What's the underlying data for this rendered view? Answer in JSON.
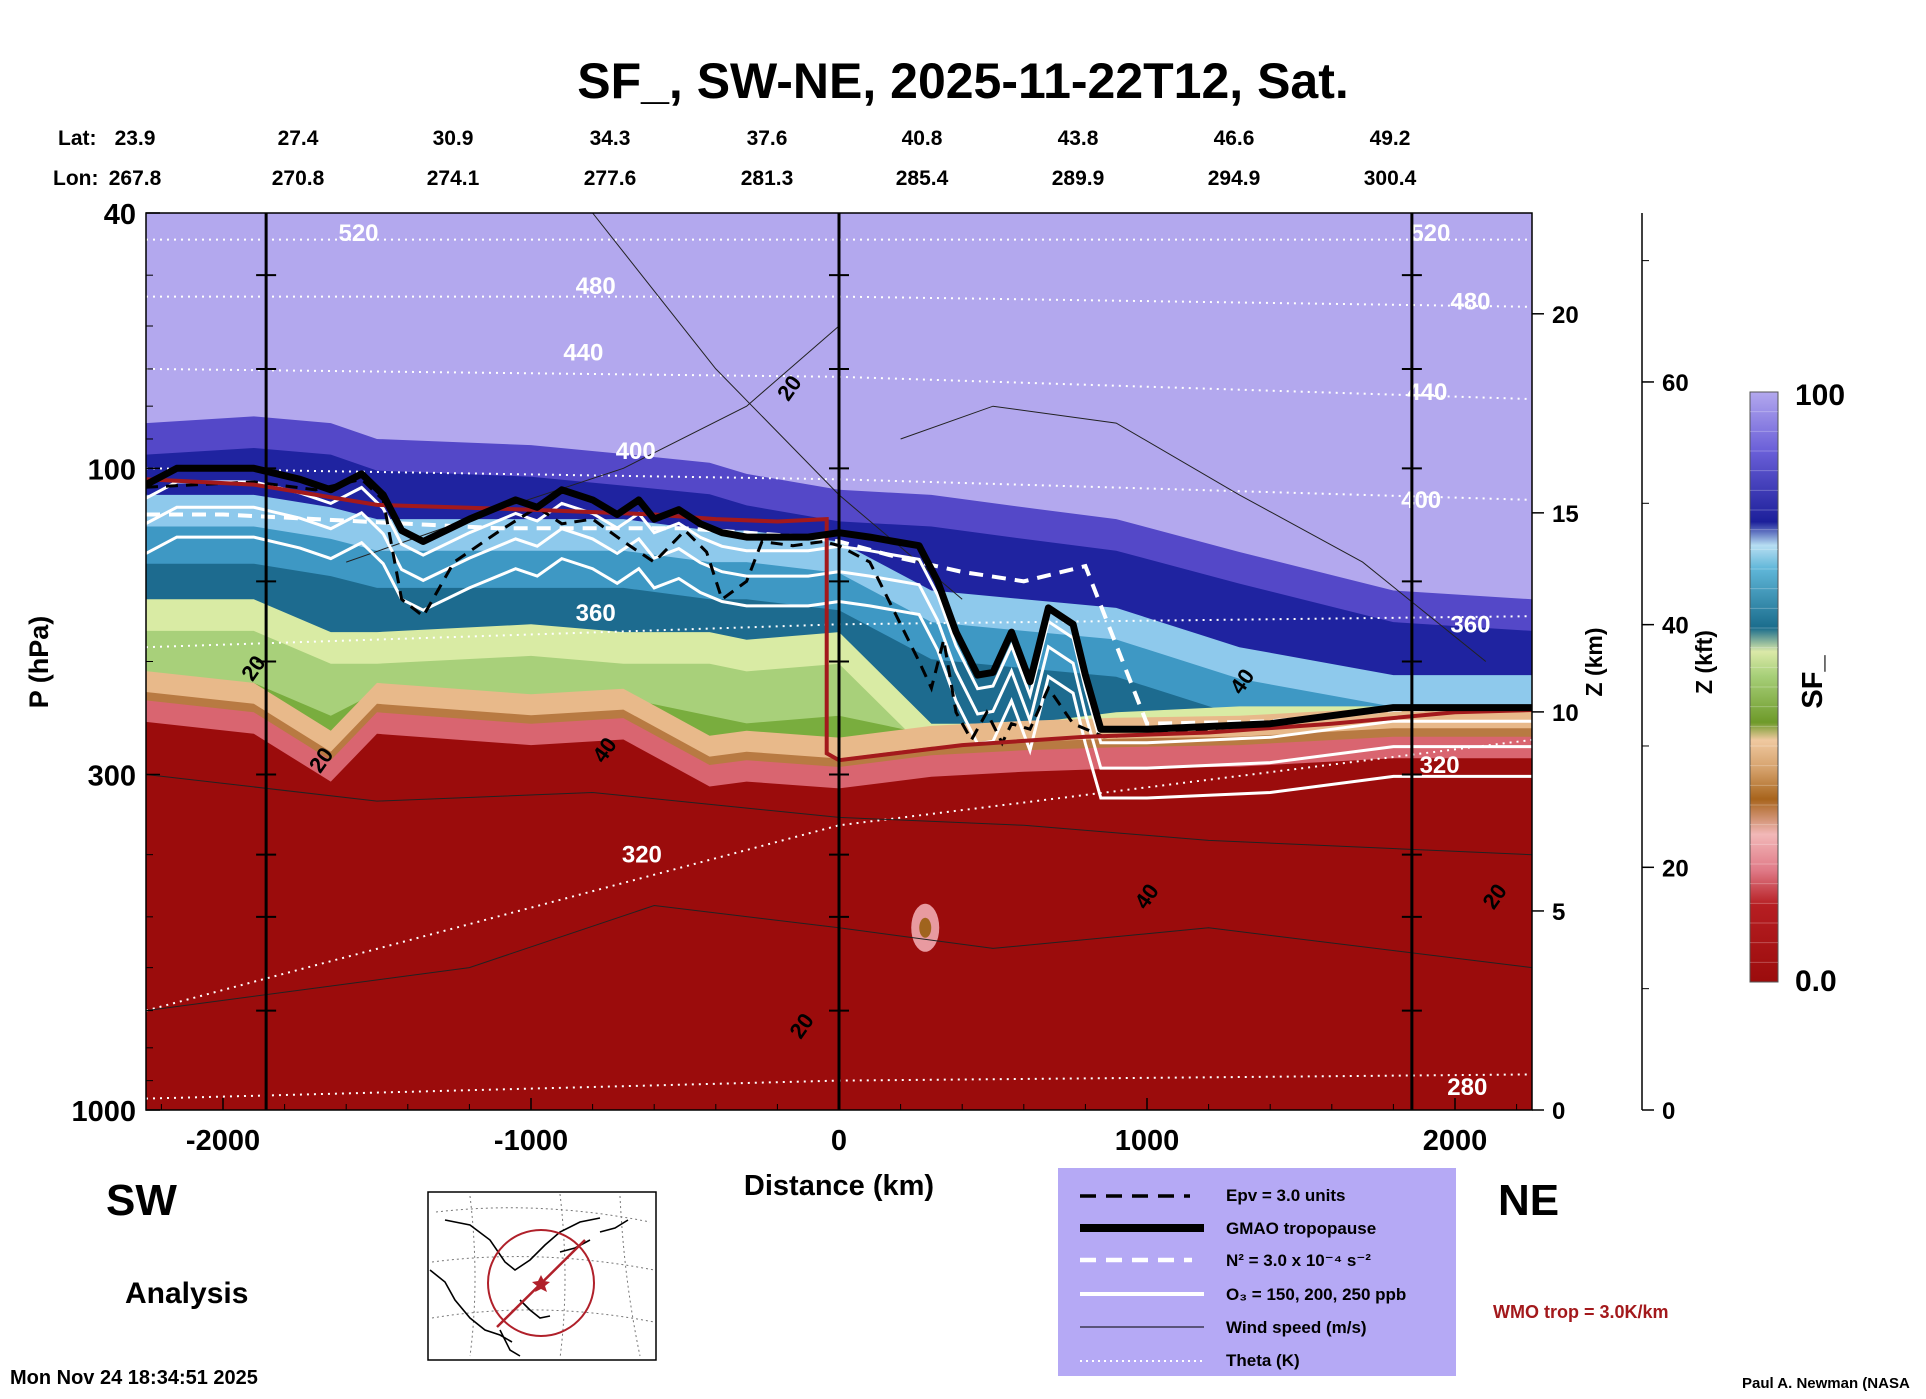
{
  "page": {
    "title": "SF_, SW-NE, 2025-11-22T12, Sat.",
    "left_label": "SW",
    "right_label": "NE",
    "analysis_label": "Analysis",
    "timestamp": "Mon Nov 24 18:34:51 2025",
    "credit": "Paul A. Newman (NASA",
    "wmo_note": "WMO trop = 3.0K/km",
    "lat_label": "Lat:",
    "lon_label": "Lon:"
  },
  "colors": {
    "low": "#9b0c0c",
    "mid": "#84b84a",
    "high": "#1c1f9a",
    "top": "#b3a8ee",
    "legend_bg": "#b5a9f5",
    "wmo": "#a3191c"
  },
  "chart_data": {
    "type": "heatmap",
    "title": "SF_, SW-NE, 2025-11-22T12, Sat.",
    "xlabel": "Distance (km)",
    "ylabel": "P (hPa)",
    "y2label": "Z (km)",
    "y3label": "Z (kft)",
    "colorbar_label": "SF_",
    "xlim": [
      -2250,
      2250
    ],
    "ylim": [
      1000,
      40
    ],
    "x_ticks": [
      -2000,
      -1000,
      0,
      1000,
      2000
    ],
    "x_tick_labels": [
      "-2000",
      "-1000",
      "0",
      "1000",
      "2000"
    ],
    "p_ticks": [
      40,
      100,
      300,
      1000
    ],
    "p_tick_labels": [
      "40",
      "100",
      "300",
      "1000"
    ],
    "z_km_ticks": [
      0,
      5,
      10,
      15,
      20
    ],
    "z_km_tick_labels": [
      "0",
      "5",
      "10",
      "15",
      "20"
    ],
    "z_kft_ticks": [
      0,
      20,
      40,
      60
    ],
    "z_kft_tick_labels": [
      "0",
      "20",
      "40",
      "60"
    ],
    "latitudes": [
      "23.9",
      "27.4",
      "30.9",
      "34.3",
      "37.6",
      "40.8",
      "43.8",
      "46.6",
      "49.2"
    ],
    "longitudes": [
      "267.8",
      "270.8",
      "274.1",
      "277.6",
      "281.3",
      "285.4",
      "289.9",
      "294.9",
      "300.4"
    ],
    "colorbar": {
      "min_label": "0.0",
      "max_label": "100",
      "min": 0,
      "max": 100
    },
    "vertical_markers_km": [
      -1860,
      0,
      1860
    ],
    "field_boundaries_hpa": {
      "x": [
        -2250,
        -1900,
        -1650,
        -1500,
        -1000,
        -700,
        -420,
        -300,
        0,
        300,
        600,
        900,
        1300,
        1800,
        2250
      ],
      "top_of_red": [
        230,
        240,
        285,
        240,
        250,
        245,
        290,
        285,
        292,
        280,
        275,
        272,
        270,
        262,
        262
      ],
      "top_of_green": [
        160,
        160,
        180,
        180,
        175,
        180,
        180,
        185,
        180,
        250,
        250,
        240,
        235,
        235,
        235
      ],
      "top_of_blue": [
        110,
        110,
        115,
        120,
        120,
        120,
        125,
        125,
        130,
        155,
        160,
        165,
        190,
        210,
        210
      ],
      "top_of_darkblue": [
        85,
        83,
        85,
        90,
        92,
        95,
        98,
        102,
        108,
        110,
        115,
        120,
        135,
        155,
        160
      ]
    },
    "gmao_tropopause": {
      "x": [
        -2250,
        -2150,
        -1900,
        -1750,
        -1650,
        -1550,
        -1480,
        -1420,
        -1350,
        -1200,
        -1050,
        -980,
        -900,
        -800,
        -720,
        -650,
        -600,
        -520,
        -450,
        -380,
        -300,
        -200,
        -100,
        0,
        100,
        180,
        260,
        320,
        380,
        450,
        500,
        560,
        620,
        680,
        760,
        800,
        850,
        1000,
        1400,
        1800,
        2250
      ],
      "p": [
        106,
        100,
        100,
        104,
        108,
        102,
        110,
        125,
        130,
        120,
        112,
        115,
        108,
        112,
        118,
        112,
        120,
        116,
        122,
        126,
        128,
        128,
        128,
        126,
        128,
        130,
        132,
        150,
        180,
        210,
        208,
        180,
        215,
        165,
        175,
        210,
        255,
        255,
        250,
        236,
        236
      ]
    },
    "wmo_tropopause": {
      "x": [
        -2250,
        -1900,
        -1500,
        -1000,
        -600,
        -400,
        -200,
        -40,
        -40,
        0,
        400,
        800,
        1200,
        1600,
        2000,
        2250
      ],
      "p": [
        104,
        106,
        114,
        116,
        118,
        120,
        121,
        120,
        278,
        285,
        270,
        262,
        258,
        250,
        240,
        238
      ]
    },
    "epv_3": {
      "x": [
        -2250,
        -1900,
        -1700,
        -1550,
        -1480,
        -1420,
        -1350,
        -1250,
        -1100,
        -980,
        -900,
        -800,
        -700,
        -600,
        -500,
        -430,
        -380,
        -300,
        -250,
        -150,
        -50,
        0,
        100,
        200,
        260,
        300,
        340,
        380,
        430,
        480,
        530,
        560,
        620,
        680,
        760,
        860,
        1000,
        1400,
        1800,
        2250
      ],
      "p": [
        107,
        105,
        108,
        104,
        112,
        160,
        170,
        140,
        125,
        115,
        122,
        120,
        130,
        140,
        125,
        135,
        160,
        150,
        130,
        132,
        130,
        132,
        140,
        175,
        200,
        220,
        185,
        240,
        265,
        240,
        268,
        250,
        255,
        220,
        250,
        262,
        260,
        250,
        236,
        236
      ]
    },
    "n2_3e4": {
      "x": [
        -2250,
        -2000,
        -1700,
        -1400,
        -1100,
        -800,
        -500,
        -300,
        -100,
        0,
        200,
        400,
        600,
        800,
        1000,
        1400,
        1800,
        2250
      ],
      "p": [
        118,
        118,
        120,
        122,
        124,
        124,
        124,
        126,
        128,
        130,
        138,
        145,
        150,
        142,
        250,
        248,
        238,
        236
      ]
    },
    "ozone_contours_ppb": [
      150,
      200,
      250
    ],
    "theta_levels_K": [
      280,
      320,
      360,
      400,
      440,
      480,
      520
    ],
    "theta_labels": [
      {
        "text": "520",
        "x": -1560,
        "p": 43
      },
      {
        "text": "520",
        "x": 1920,
        "p": 43
      },
      {
        "text": "480",
        "x": -790,
        "p": 52
      },
      {
        "text": "480",
        "x": 2050,
        "p": 55
      },
      {
        "text": "440",
        "x": -830,
        "p": 66
      },
      {
        "text": "440",
        "x": 1910,
        "p": 76
      },
      {
        "text": "400",
        "x": -660,
        "p": 94
      },
      {
        "text": "400",
        "x": 1890,
        "p": 112
      },
      {
        "text": "360",
        "x": -790,
        "p": 168
      },
      {
        "text": "360",
        "x": 2050,
        "p": 175
      },
      {
        "text": "320",
        "x": -640,
        "p": 400
      },
      {
        "text": "320",
        "x": 1950,
        "p": 290
      },
      {
        "text": "280",
        "x": 2040,
        "p": 920
      }
    ],
    "wind_labels": [
      {
        "text": "20",
        "x": -1900,
        "p": 205
      },
      {
        "text": "20",
        "x": -1680,
        "p": 285
      },
      {
        "text": "40",
        "x": -760,
        "p": 275
      },
      {
        "text": "20",
        "x": -160,
        "p": 75
      },
      {
        "text": "40",
        "x": 1310,
        "p": 215
      },
      {
        "text": "40",
        "x": 1000,
        "p": 465
      },
      {
        "text": "20",
        "x": -120,
        "p": 740
      },
      {
        "text": "20",
        "x": 2130,
        "p": 465
      }
    ],
    "legend": [
      {
        "label": "Epv = 3.0 units",
        "style": "dashed-black"
      },
      {
        "label": "GMAO tropopause",
        "style": "thick-black"
      },
      {
        "label": "N² = 3.0 x 10⁻⁴ s⁻²",
        "style": "dashed-white"
      },
      {
        "label": "O₃ = 150, 200, 250 ppb",
        "style": "solid-white"
      },
      {
        "label": "Wind speed (m/s)",
        "style": "thin-black"
      },
      {
        "label": "Theta (K)",
        "style": "dotted-white"
      }
    ]
  }
}
